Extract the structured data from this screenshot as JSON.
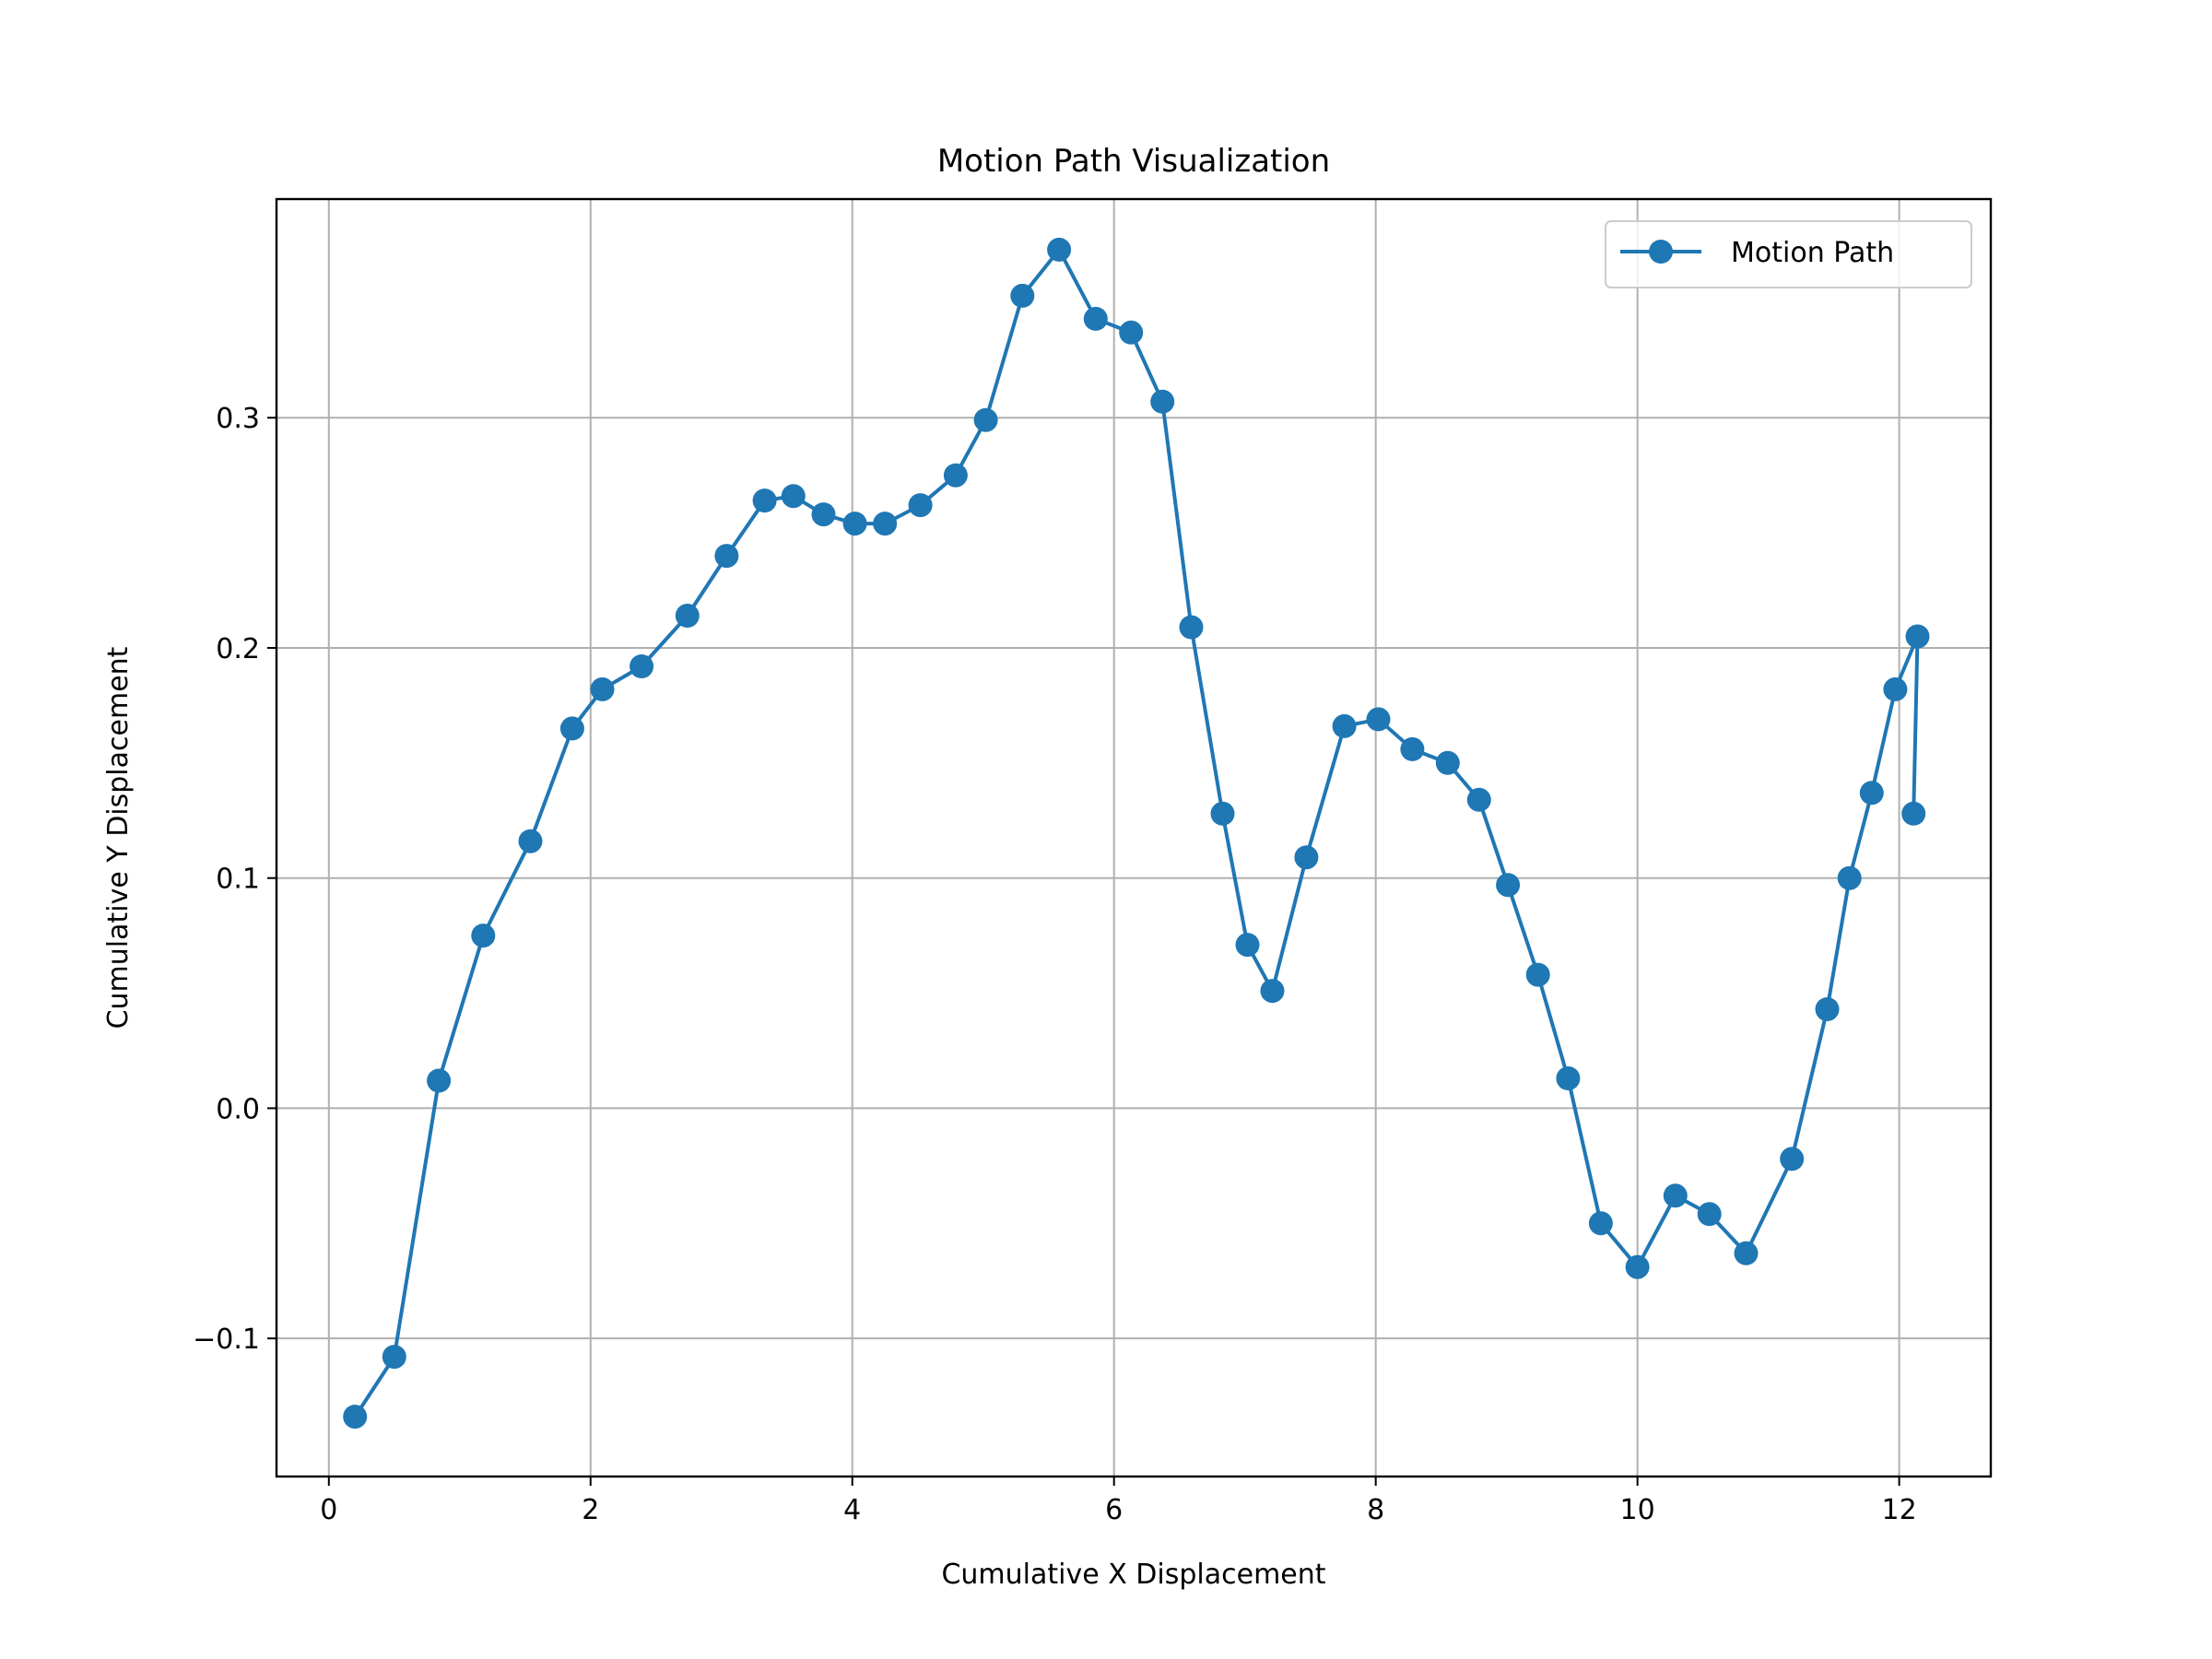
{
  "chart_data": {
    "type": "line",
    "title": "Motion Path Visualization",
    "xlabel": "Cumulative X Displacement",
    "ylabel": "Cumulative Y Displacement",
    "xlim": [
      -0.4,
      12.7
    ],
    "ylim": [
      -0.16,
      0.395
    ],
    "xticks": [
      0,
      2,
      4,
      6,
      8,
      10,
      12
    ],
    "xtick_labels": [
      "0",
      "2",
      "4",
      "6",
      "8",
      "10",
      "12"
    ],
    "yticks": [
      -0.1,
      0.0,
      0.1,
      0.2,
      0.3
    ],
    "ytick_labels": [
      "−0.1",
      "0.0",
      "0.1",
      "0.2",
      "0.3"
    ],
    "grid": true,
    "legend": {
      "position": "upper right",
      "entries": [
        "Motion Path"
      ]
    },
    "series": [
      {
        "name": "Motion Path",
        "color": "#1f77b4",
        "marker": "circle",
        "points": [
          [
            0.2,
            -0.134
          ],
          [
            0.5,
            -0.108
          ],
          [
            0.84,
            0.012
          ],
          [
            1.18,
            0.075
          ],
          [
            1.54,
            0.116
          ],
          [
            1.86,
            0.165
          ],
          [
            2.09,
            0.182
          ],
          [
            2.39,
            0.192
          ],
          [
            2.74,
            0.214
          ],
          [
            3.04,
            0.24
          ],
          [
            3.33,
            0.264
          ],
          [
            3.55,
            0.266
          ],
          [
            3.78,
            0.258
          ],
          [
            4.02,
            0.254
          ],
          [
            4.25,
            0.254
          ],
          [
            4.52,
            0.262
          ],
          [
            4.79,
            0.275
          ],
          [
            5.02,
            0.299
          ],
          [
            5.3,
            0.353
          ],
          [
            5.58,
            0.373
          ],
          [
            5.86,
            0.343
          ],
          [
            6.13,
            0.337
          ],
          [
            6.37,
            0.307
          ],
          [
            6.59,
            0.209
          ],
          [
            6.83,
            0.128
          ],
          [
            7.02,
            0.071
          ],
          [
            7.21,
            0.051
          ],
          [
            7.47,
            0.109
          ],
          [
            7.76,
            0.166
          ],
          [
            8.02,
            0.169
          ],
          [
            8.28,
            0.156
          ],
          [
            8.55,
            0.15
          ],
          [
            8.79,
            0.134
          ],
          [
            9.01,
            0.097
          ],
          [
            9.24,
            0.058
          ],
          [
            9.47,
            0.013
          ],
          [
            9.72,
            -0.05
          ],
          [
            10.0,
            -0.069
          ],
          [
            10.29,
            -0.038
          ],
          [
            10.55,
            -0.046
          ],
          [
            10.83,
            -0.063
          ],
          [
            11.18,
            -0.022
          ],
          [
            11.45,
            0.043
          ],
          [
            11.62,
            0.1
          ],
          [
            11.79,
            0.137
          ],
          [
            11.97,
            0.182
          ],
          [
            12.14,
            0.205
          ],
          [
            12.11,
            0.128
          ]
        ]
      }
    ]
  }
}
